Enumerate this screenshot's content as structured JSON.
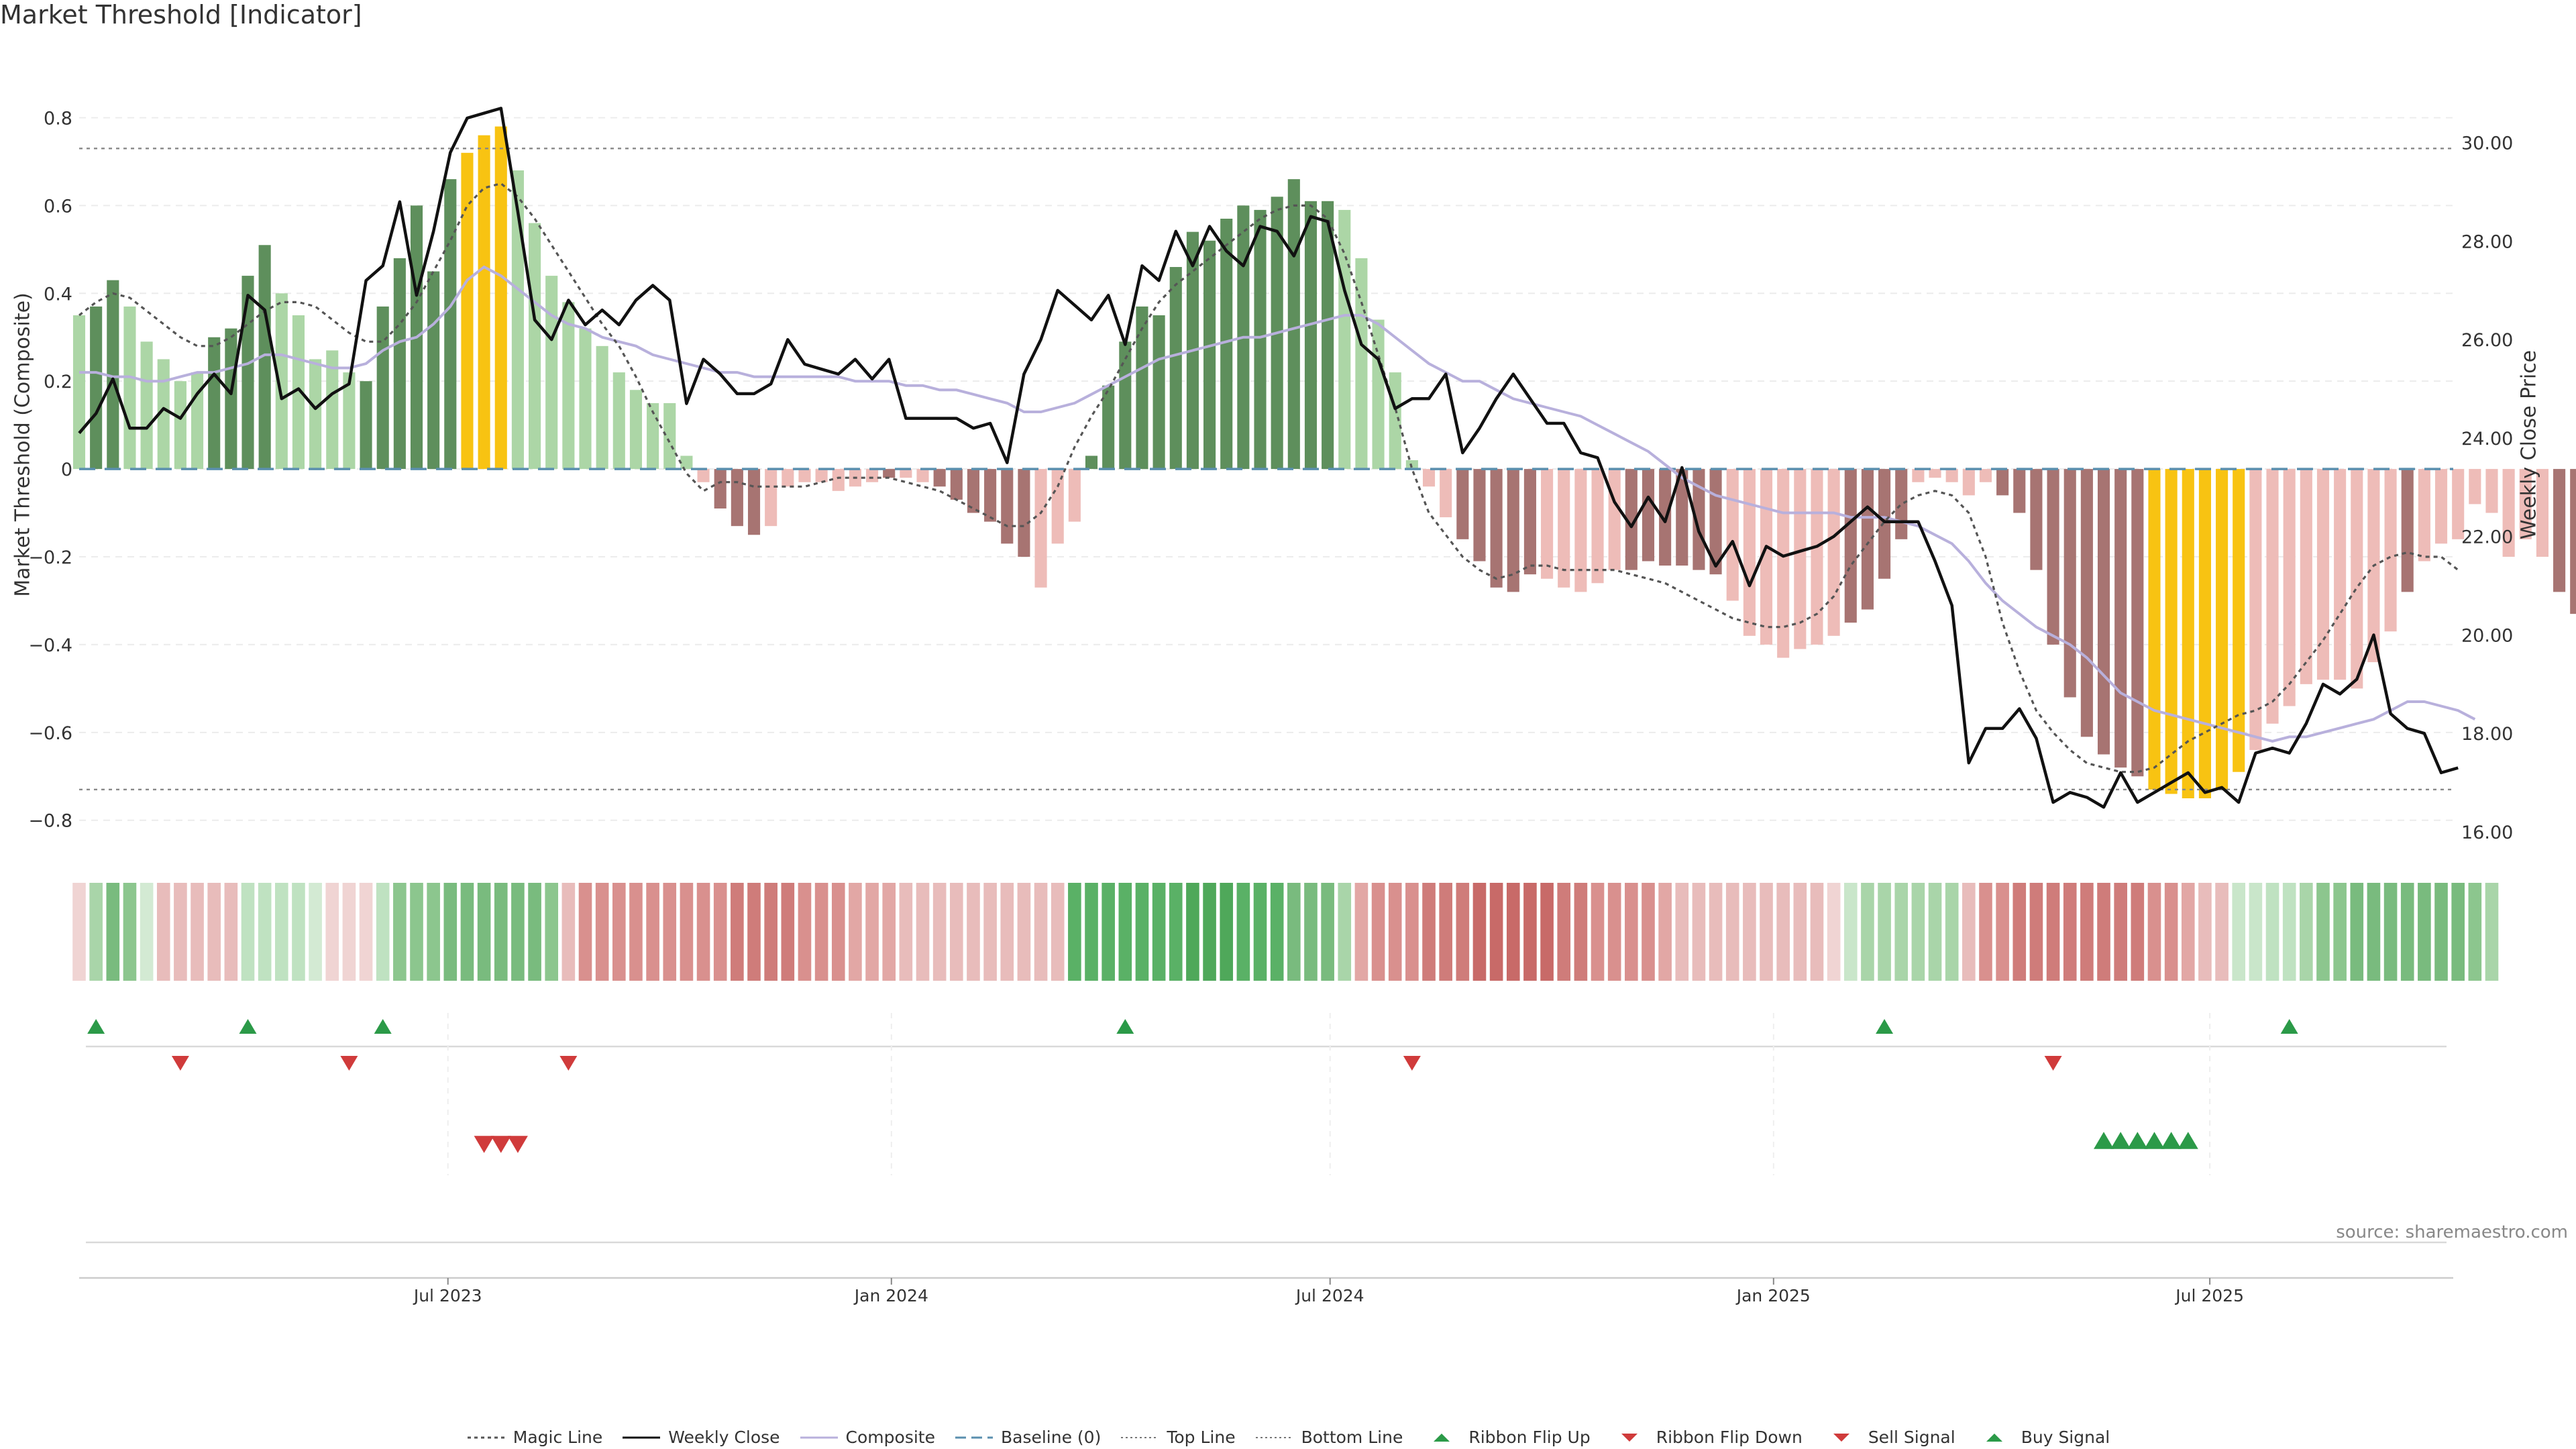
{
  "title": "Market Threshold [Indicator]",
  "source": "source: sharemaestro.com",
  "colors": {
    "dark_green": "#5e8f5c",
    "light_green": "#acd6a6",
    "dark_red": "#a77472",
    "light_red": "#eebcb8",
    "gold": "#f8c312",
    "composite": "#b8b0dc",
    "close": "#111111",
    "magic": "#555555",
    "baseline": "#5a8fae",
    "flip_up": "#2b9a48",
    "flip_down": "#d03b3b"
  },
  "legend": [
    {
      "label": "Magic Line",
      "kind": "dotted",
      "color": "#555555"
    },
    {
      "label": "Weekly Close",
      "kind": "solid",
      "color": "#111111"
    },
    {
      "label": "Composite",
      "kind": "solid",
      "color": "#b8b0dc"
    },
    {
      "label": "Baseline (0)",
      "kind": "dashed",
      "color": "#5a8fae"
    },
    {
      "label": "Top Line",
      "kind": "dotted-light",
      "color": "#777777"
    },
    {
      "label": "Bottom Line",
      "kind": "dotted-light",
      "color": "#777777"
    },
    {
      "label": "Ribbon Flip Up",
      "kind": "tri-up",
      "color": "#2b9a48"
    },
    {
      "label": "Ribbon Flip Down",
      "kind": "tri-down",
      "color": "#d03b3b"
    },
    {
      "label": "Sell Signal",
      "kind": "tri-down",
      "color": "#d03b3b"
    },
    {
      "label": "Buy Signal",
      "kind": "tri-up",
      "color": "#2b9a48"
    }
  ],
  "chart_data": {
    "type": "bar",
    "ylabel": "Market Threshold (Composite)",
    "y2label": "Weekly Close Price",
    "ylim": [
      -0.86,
      0.9
    ],
    "y2lim": [
      15.7,
      31.4
    ],
    "yticks": [
      "0.8",
      "0.6",
      "0.4",
      "0.2",
      "0",
      "−0.2",
      "−0.4",
      "−0.6",
      "−0.8"
    ],
    "y2ticks": [
      "30.00",
      "28.00",
      "26.00",
      "24.00",
      "22.00",
      "20.00",
      "18.00",
      "16.00"
    ],
    "top_line": 0.73,
    "bottom_line": -0.73,
    "x_start": "2023-01-29",
    "x_end": "2025-10-10",
    "xticks": [
      {
        "label": "Jul 2023",
        "date": "2023-07-01"
      },
      {
        "label": "Jan 2024",
        "date": "2024-01-01"
      },
      {
        "label": "Jul 2024",
        "date": "2024-07-01"
      },
      {
        "label": "Jan 2025",
        "date": "2025-01-01"
      },
      {
        "label": "Jul 2025",
        "date": "2025-07-01"
      }
    ],
    "series": [
      {
        "key": "composite_bars",
        "first_date": "2023-01-29",
        "values": [
          0.35,
          0.37,
          0.43,
          0.37,
          0.29,
          0.25,
          0.2,
          0.22,
          0.3,
          0.32,
          0.44,
          0.51,
          0.4,
          0.35,
          0.25,
          0.27,
          0.22,
          0.2,
          0.37,
          0.48,
          0.6,
          0.45,
          0.66,
          0.72,
          0.76,
          0.78,
          0.68,
          0.56,
          0.44,
          0.38,
          0.32,
          0.28,
          0.22,
          0.18,
          0.15,
          0.15,
          0.03,
          -0.03,
          -0.09,
          -0.13,
          -0.15,
          -0.13,
          -0.04,
          -0.03,
          -0.03,
          -0.05,
          -0.04,
          -0.03,
          -0.02,
          -0.02,
          -0.03,
          -0.04,
          -0.07,
          -0.1,
          -0.12,
          -0.17,
          -0.2,
          -0.27,
          -0.17,
          -0.12,
          0.03,
          0.19,
          0.29,
          0.37,
          0.35,
          0.46,
          0.54,
          0.52,
          0.57,
          0.6,
          0.59,
          0.62,
          0.66,
          0.61,
          0.61,
          0.59,
          0.48,
          0.34,
          0.22,
          0.02,
          -0.04,
          -0.11,
          -0.16,
          -0.21,
          -0.27,
          -0.28,
          -0.24,
          -0.25,
          -0.27,
          -0.28,
          -0.26,
          -0.23,
          -0.23,
          -0.21,
          -0.22,
          -0.22,
          -0.23,
          -0.24,
          -0.3,
          -0.38,
          -0.4,
          -0.43,
          -0.41,
          -0.4,
          -0.38,
          -0.35,
          -0.32,
          -0.25,
          -0.16,
          -0.03,
          -0.02,
          -0.03,
          -0.06,
          -0.03,
          -0.06,
          -0.1,
          -0.23,
          -0.4,
          -0.52,
          -0.61,
          -0.65,
          -0.68,
          -0.7,
          -0.73,
          -0.74,
          -0.75,
          -0.75,
          -0.73,
          -0.69,
          -0.64,
          -0.58,
          -0.54,
          -0.49,
          -0.48,
          -0.48,
          -0.5,
          -0.44,
          -0.37,
          -0.28,
          -0.21,
          -0.17,
          -0.16,
          -0.08,
          -0.1,
          -0.2,
          -0.16,
          -0.2,
          -0.28,
          -0.33
        ],
        "shades": "LDDLLLLLDDDDLLLLLDDDDDDGGGLLLLLLLLLLLLDDDLLLLLLLDLLDDDDDDLLLDDDDDDDDDDDDDDDLLLLLLLDDDDDLLLLLDDDDDDLLLLLLLDDDDLLLLLDDDDDDDDDGGGGGGLLLLLLLLLDLLLLLLLLDDDDD"
      },
      {
        "key": "weekly_close",
        "first_date": "2023-01-29",
        "values": [
          24.1,
          24.5,
          25.2,
          24.2,
          24.2,
          24.6,
          24.4,
          24.9,
          25.3,
          24.9,
          26.9,
          26.6,
          24.8,
          25.0,
          24.6,
          24.9,
          25.1,
          27.2,
          27.5,
          28.8,
          26.9,
          28.2,
          29.8,
          30.5,
          30.6,
          30.7,
          28.6,
          26.4,
          26.0,
          26.8,
          26.3,
          26.6,
          26.3,
          26.8,
          27.1,
          26.8,
          24.7,
          25.6,
          25.3,
          24.9,
          24.9,
          25.1,
          26.0,
          25.5,
          25.4,
          25.3,
          25.6,
          25.2,
          25.6,
          24.4,
          24.4,
          24.4,
          24.4,
          24.2,
          24.3,
          23.5,
          25.3,
          26.0,
          27.0,
          26.7,
          26.4,
          26.9,
          25.9,
          27.5,
          27.2,
          28.2,
          27.5,
          28.3,
          27.8,
          27.5,
          28.3,
          28.2,
          27.7,
          28.5,
          28.4,
          27.0,
          25.9,
          25.6,
          24.6,
          24.8,
          24.8,
          25.3,
          23.7,
          24.2,
          24.8,
          25.3,
          24.8,
          24.3,
          24.3,
          23.7,
          23.6,
          22.7,
          22.2,
          22.8,
          22.3,
          23.4,
          22.1,
          21.4,
          21.9,
          21.0,
          21.8,
          21.6,
          21.7,
          21.8,
          22.0,
          22.3,
          22.6,
          22.3,
          22.3,
          22.3,
          21.5,
          20.6,
          17.4,
          18.1,
          18.1,
          18.5,
          17.9,
          16.6,
          16.8,
          16.7,
          16.5,
          17.2,
          16.6,
          16.8,
          17.0,
          17.2,
          16.8,
          16.9,
          16.6,
          17.6,
          17.7,
          17.6,
          18.2,
          19.0,
          18.8,
          19.1,
          20.0,
          18.4,
          18.1,
          18.0,
          17.2,
          17.3
        ]
      },
      {
        "key": "composite_line",
        "first_date": "2023-01-29",
        "values": [
          0.22,
          0.22,
          0.21,
          0.21,
          0.2,
          0.2,
          0.21,
          0.22,
          0.22,
          0.23,
          0.24,
          0.26,
          0.26,
          0.25,
          0.24,
          0.23,
          0.23,
          0.24,
          0.27,
          0.29,
          0.3,
          0.33,
          0.37,
          0.43,
          0.46,
          0.44,
          0.41,
          0.38,
          0.35,
          0.33,
          0.32,
          0.3,
          0.29,
          0.28,
          0.26,
          0.25,
          0.24,
          0.23,
          0.22,
          0.22,
          0.21,
          0.21,
          0.21,
          0.21,
          0.21,
          0.21,
          0.2,
          0.2,
          0.2,
          0.19,
          0.19,
          0.18,
          0.18,
          0.17,
          0.16,
          0.15,
          0.13,
          0.13,
          0.14,
          0.15,
          0.17,
          0.19,
          0.21,
          0.23,
          0.25,
          0.26,
          0.27,
          0.28,
          0.29,
          0.3,
          0.3,
          0.31,
          0.32,
          0.33,
          0.34,
          0.35,
          0.35,
          0.33,
          0.3,
          0.27,
          0.24,
          0.22,
          0.2,
          0.2,
          0.18,
          0.16,
          0.15,
          0.14,
          0.13,
          0.12,
          0.1,
          0.08,
          0.06,
          0.04,
          0.01,
          -0.02,
          -0.04,
          -0.06,
          -0.07,
          -0.08,
          -0.09,
          -0.1,
          -0.1,
          -0.1,
          -0.1,
          -0.11,
          -0.11,
          -0.11,
          -0.12,
          -0.13,
          -0.15,
          -0.17,
          -0.21,
          -0.26,
          -0.3,
          -0.33,
          -0.36,
          -0.38,
          -0.4,
          -0.43,
          -0.47,
          -0.51,
          -0.53,
          -0.55,
          -0.56,
          -0.57,
          -0.58,
          -0.59,
          -0.6,
          -0.61,
          -0.62,
          -0.61,
          -0.61,
          -0.6,
          -0.59,
          -0.58,
          -0.57,
          -0.55,
          -0.53,
          -0.53,
          -0.54,
          -0.55,
          -0.57
        ]
      },
      {
        "key": "magic_line",
        "first_date": "2023-01-29",
        "values": [
          0.35,
          0.38,
          0.4,
          0.39,
          0.36,
          0.33,
          0.3,
          0.28,
          0.28,
          0.3,
          0.33,
          0.36,
          0.38,
          0.38,
          0.37,
          0.34,
          0.31,
          0.29,
          0.29,
          0.33,
          0.38,
          0.45,
          0.52,
          0.6,
          0.64,
          0.65,
          0.62,
          0.57,
          0.51,
          0.45,
          0.39,
          0.33,
          0.28,
          0.21,
          0.13,
          0.06,
          -0.01,
          -0.05,
          -0.03,
          -0.03,
          -0.04,
          -0.04,
          -0.04,
          -0.04,
          -0.03,
          -0.02,
          -0.02,
          -0.02,
          -0.02,
          -0.03,
          -0.04,
          -0.05,
          -0.07,
          -0.09,
          -0.11,
          -0.13,
          -0.13,
          -0.1,
          -0.04,
          0.05,
          0.12,
          0.18,
          0.25,
          0.32,
          0.38,
          0.42,
          0.45,
          0.48,
          0.51,
          0.54,
          0.57,
          0.59,
          0.6,
          0.6,
          0.57,
          0.49,
          0.38,
          0.26,
          0.14,
          0.0,
          -0.1,
          -0.15,
          -0.2,
          -0.23,
          -0.25,
          -0.24,
          -0.22,
          -0.22,
          -0.23,
          -0.23,
          -0.23,
          -0.23,
          -0.24,
          -0.25,
          -0.26,
          -0.28,
          -0.3,
          -0.32,
          -0.34,
          -0.35,
          -0.36,
          -0.36,
          -0.35,
          -0.33,
          -0.29,
          -0.22,
          -0.17,
          -0.12,
          -0.08,
          -0.06,
          -0.05,
          -0.06,
          -0.1,
          -0.2,
          -0.35,
          -0.46,
          -0.55,
          -0.6,
          -0.64,
          -0.67,
          -0.68,
          -0.69,
          -0.69,
          -0.68,
          -0.65,
          -0.62,
          -0.6,
          -0.58,
          -0.56,
          -0.55,
          -0.53,
          -0.49,
          -0.44,
          -0.39,
          -0.33,
          -0.27,
          -0.22,
          -0.2,
          -0.19,
          -0.2,
          -0.2,
          -0.23
        ]
      }
    ],
    "ribbon": {
      "first_date": "2023-01-29",
      "colors": [
        "#f0d4d3",
        "#a9d5a9",
        "#79bb7e",
        "#8cc68e",
        "#d3ead3",
        "#e8bcbb",
        "#e8bcbb",
        "#e8bcbb",
        "#e8bcbb",
        "#e8bcbb",
        "#bfe2c1",
        "#bfe2c1",
        "#bfe2c1",
        "#bfe2c1",
        "#d3ead3",
        "#f0d4d3",
        "#f0d4d3",
        "#f0d4d3",
        "#bfe2c1",
        "#8cc68e",
        "#8cc68e",
        "#8cc68e",
        "#79bb7e",
        "#79bb7e",
        "#79bb7e",
        "#79bb7e",
        "#79bb7e",
        "#79bb7e",
        "#8cc68e",
        "#e8bcbb",
        "#d9908e",
        "#d9908e",
        "#d9908e",
        "#d9908e",
        "#d9908e",
        "#d9908e",
        "#d9908e",
        "#d9908e",
        "#d9908e",
        "#cf7c7a",
        "#cf7c7a",
        "#cf7c7a",
        "#cf7c7a",
        "#d9908e",
        "#d9908e",
        "#d9908e",
        "#e2a7a5",
        "#e2a7a5",
        "#e2a7a5",
        "#e8bcbb",
        "#e8bcbb",
        "#e8bcbb",
        "#e8bcbb",
        "#e8bcbb",
        "#e8bcbb",
        "#e8bcbb",
        "#e8bcbb",
        "#e8bcbb",
        "#e8bcbb",
        "#5ab166",
        "#5ab166",
        "#5ab166",
        "#5ab166",
        "#5ab166",
        "#5ab166",
        "#5ab166",
        "#4fa85a",
        "#4fa85a",
        "#4fa85a",
        "#5ab166",
        "#5ab166",
        "#5ab166",
        "#79bb7e",
        "#79bb7e",
        "#79bb7e",
        "#a9d5a9",
        "#e2a7a5",
        "#d9908e",
        "#d9908e",
        "#d9908e",
        "#cf7c7a",
        "#cf7c7a",
        "#cf7c7a",
        "#c86a68",
        "#c86a68",
        "#c86a68",
        "#c86a68",
        "#c86a68",
        "#cf7c7a",
        "#cf7c7a",
        "#d9908e",
        "#d9908e",
        "#d9908e",
        "#d9908e",
        "#e2a7a5",
        "#e8bcbb",
        "#e8bcbb",
        "#e8bcbb",
        "#e8bcbb",
        "#e8bcbb",
        "#e8bcbb",
        "#e8bcbb",
        "#e8bcbb",
        "#e8bcbb",
        "#f0d4d3",
        "#c9e6ca",
        "#a9d5a9",
        "#a9d5a9",
        "#a9d5a9",
        "#a9d5a9",
        "#a9d5a9",
        "#a9d5a9",
        "#e8bcbb",
        "#d9908e",
        "#d9908e",
        "#cf7c7a",
        "#cf7c7a",
        "#cf7c7a",
        "#cf7c7a",
        "#cf7c7a",
        "#cf7c7a",
        "#cf7c7a",
        "#cf7c7a",
        "#d9908e",
        "#d9908e",
        "#e2a7a5",
        "#e8bcbb",
        "#e8bcbb",
        "#c9e6ca",
        "#c9e6ca",
        "#bfe2c1",
        "#bfe2c1",
        "#a9d5a9",
        "#8cc68e",
        "#8cc68e",
        "#79bb7e",
        "#79bb7e",
        "#79bb7e",
        "#79bb7e",
        "#79bb7e",
        "#79bb7e",
        "#79bb7e",
        "#8cc68e",
        "#a9d5a9"
      ]
    },
    "ribbon_flip_up": [
      "2023-02-05",
      "2023-04-09",
      "2023-06-04",
      "2024-04-07",
      "2025-02-16",
      "2025-08-03"
    ],
    "ribbon_flip_down": [
      "2023-03-12",
      "2023-05-21",
      "2023-08-20",
      "2024-08-04",
      "2025-04-27"
    ],
    "sell_signals": [
      "2023-07-16",
      "2023-07-23",
      "2023-07-30"
    ],
    "buy_signals": [
      "2025-05-18",
      "2025-05-25",
      "2025-06-01",
      "2025-06-08",
      "2025-06-15",
      "2025-06-22"
    ]
  }
}
